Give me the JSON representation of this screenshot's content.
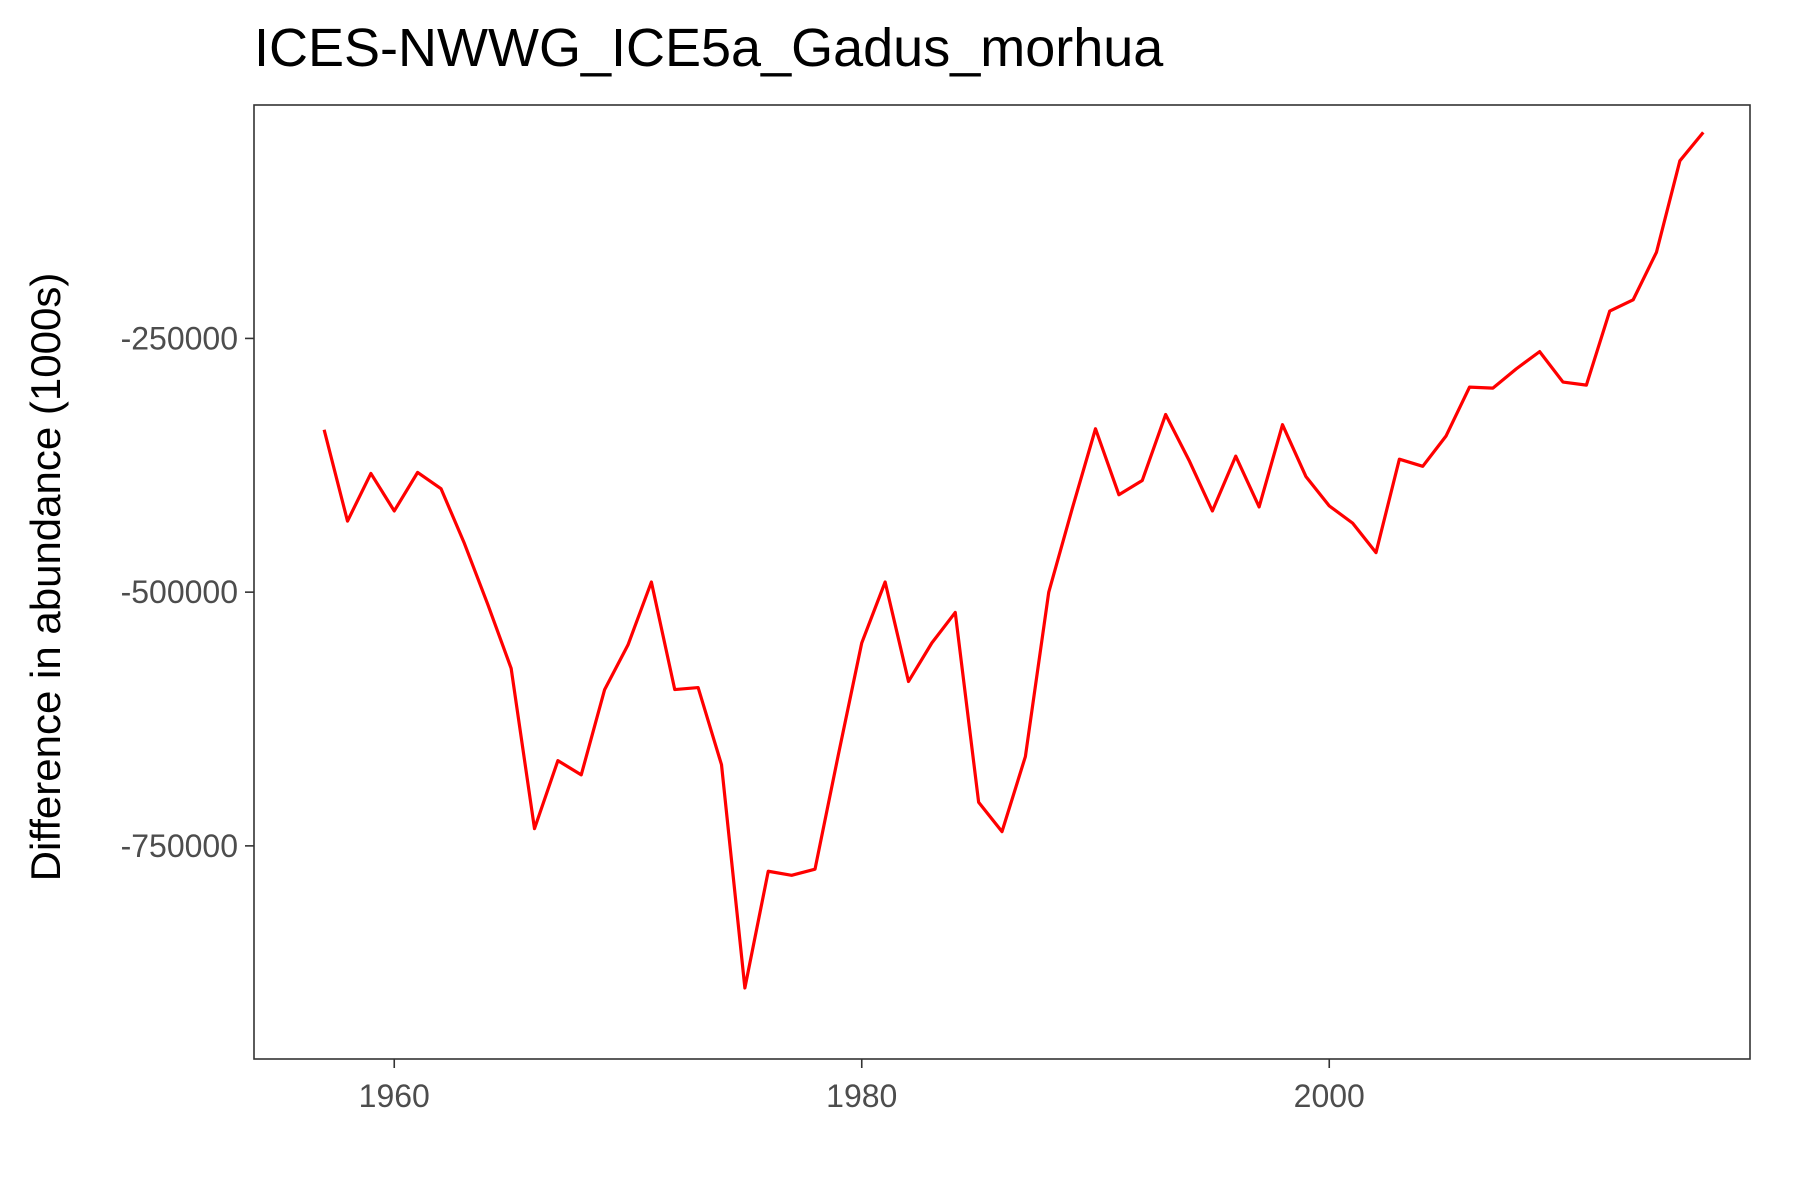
{
  "chart_data": {
    "type": "line",
    "title": "ICES-NWWG_ICE5a_Gadus_morhua",
    "xlabel": "",
    "ylabel": "Difference in abundance (1000s)",
    "xlim": [
      1954,
      2018
    ],
    "ylim": [
      -960000,
      -20000
    ],
    "x_ticks": [
      1960,
      1980,
      2000
    ],
    "x_tick_labels": [
      "1960",
      "1980",
      "2000"
    ],
    "y_ticks": [
      -250000,
      -500000,
      -750000
    ],
    "y_tick_labels": [
      "-250000",
      "-500000",
      "-750000"
    ],
    "grid": false,
    "legend": "none",
    "series_color": "#ff0000",
    "series": [
      {
        "x": [
          1957,
          1958,
          1959,
          1960,
          1961,
          1962,
          1963,
          1964,
          1965,
          1966,
          1967,
          1968,
          1969,
          1970,
          1971,
          1972,
          1973,
          1974,
          1975,
          1976,
          1977,
          1978,
          1979,
          1980,
          1981,
          1982,
          1983,
          1984,
          1985,
          1986,
          1987,
          1988,
          1989,
          1990,
          1991,
          1992,
          1993,
          1994,
          1995,
          1996,
          1997,
          1998,
          1999,
          2000,
          2001,
          2002,
          2003,
          2004,
          2005,
          2006,
          2007,
          2008,
          2009,
          2010,
          2011,
          2012,
          2013,
          2014,
          2015,
          2016
        ],
        "values": [
          -340000,
          -430000,
          -383000,
          -420000,
          -382000,
          -398000,
          -452000,
          -512000,
          -575000,
          -733000,
          -666000,
          -680000,
          -596000,
          -552000,
          -490000,
          -596000,
          -594000,
          -670000,
          -890000,
          -775000,
          -779000,
          -773000,
          -660000,
          -550000,
          -490000,
          -588000,
          -550000,
          -520000,
          -707000,
          -736000,
          -662000,
          -500000,
          -418000,
          -339000,
          -404000,
          -390000,
          -325000,
          -370000,
          -420000,
          -366000,
          -416000,
          -335000,
          -386000,
          -415000,
          -432000,
          -461000,
          -369000,
          -376000,
          -346000,
          -298000,
          -299000,
          -280000,
          -263000,
          -293000,
          -296000,
          -223000,
          -212000,
          -165000,
          -75000,
          -47000
        ]
      }
    ]
  }
}
